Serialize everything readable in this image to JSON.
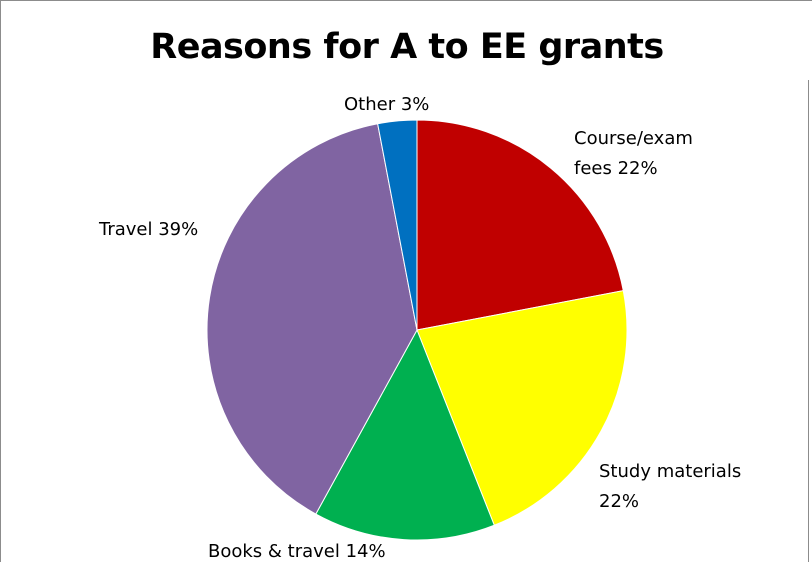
{
  "chart_data": {
    "type": "pie",
    "title": "Reasons for A to EE grants",
    "slices": [
      {
        "label_lines": [
          "Course/exam",
          "fees 22%"
        ],
        "category": "Course/exam fees",
        "value": 22,
        "color": "#C00000"
      },
      {
        "label_lines": [
          "Study materials",
          "22%"
        ],
        "category": "Study materials",
        "value": 22,
        "color": "#FFFF00"
      },
      {
        "label_lines": [
          "Books & travel 14%"
        ],
        "category": "Books & travel",
        "value": 14,
        "color": "#00B050"
      },
      {
        "label_lines": [
          "Travel 39%"
        ],
        "category": "Travel",
        "value": 39,
        "color": "#8064A2"
      },
      {
        "label_lines": [
          "Other 3%"
        ],
        "category": "Other",
        "value": 3,
        "color": "#0070C0"
      }
    ],
    "start_angle": "12 o'clock",
    "direction": "clockwise",
    "legend": "none"
  }
}
